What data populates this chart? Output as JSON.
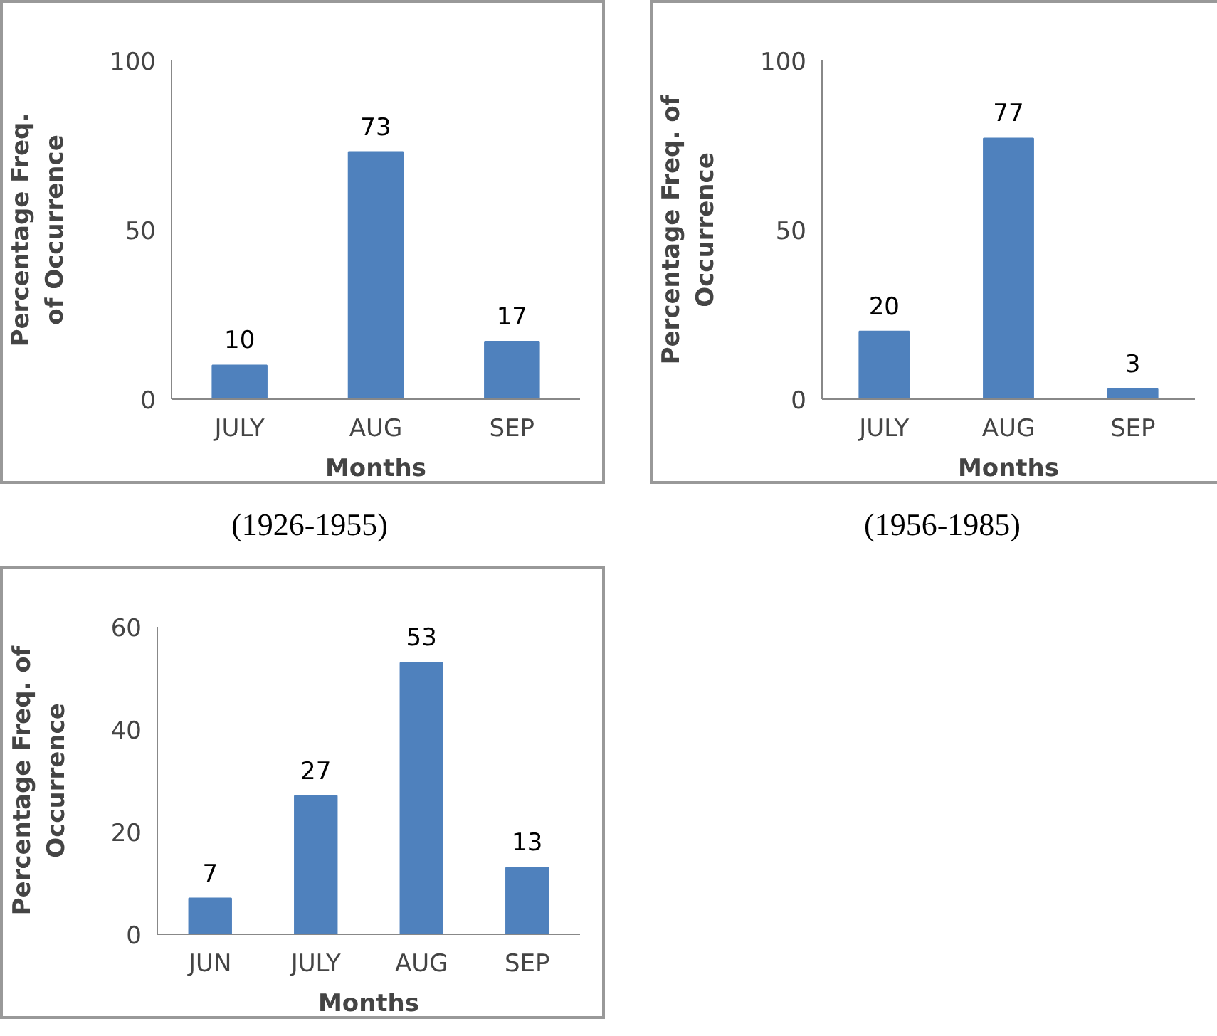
{
  "chart_data": [
    {
      "type": "bar",
      "categories": [
        "JULY",
        "AUG",
        "SEP"
      ],
      "values": [
        10,
        73,
        17
      ],
      "color": "#4f81bd",
      "xlabel": "Months",
      "ylabel": "Percentage Freq.\nof Occurrence",
      "ylim": [
        0,
        100
      ],
      "yticks": [
        0,
        50,
        100
      ],
      "data_labels": true,
      "annotations": [
        "(1926-1955)"
      ]
    },
    {
      "type": "bar",
      "categories": [
        "JULY",
        "AUG",
        "SEP"
      ],
      "values": [
        20,
        77,
        3
      ],
      "color": "#4f81bd",
      "xlabel": "Months",
      "ylabel": "Percentage Freq. of\nOccurrence",
      "ylim": [
        0,
        100
      ],
      "yticks": [
        0,
        50,
        100
      ],
      "data_labels": true,
      "annotations": [
        "(1956-1985)"
      ]
    },
    {
      "type": "bar",
      "categories": [
        "JUN",
        "JULY",
        "AUG",
        "SEP"
      ],
      "values": [
        7,
        27,
        53,
        13
      ],
      "color": "#4f81bd",
      "xlabel": "Months",
      "ylabel": "Percentage Freq. of\nOccurrence",
      "ylim": [
        0,
        60
      ],
      "yticks": [
        0,
        20,
        40,
        60
      ],
      "data_labels": true
    }
  ]
}
